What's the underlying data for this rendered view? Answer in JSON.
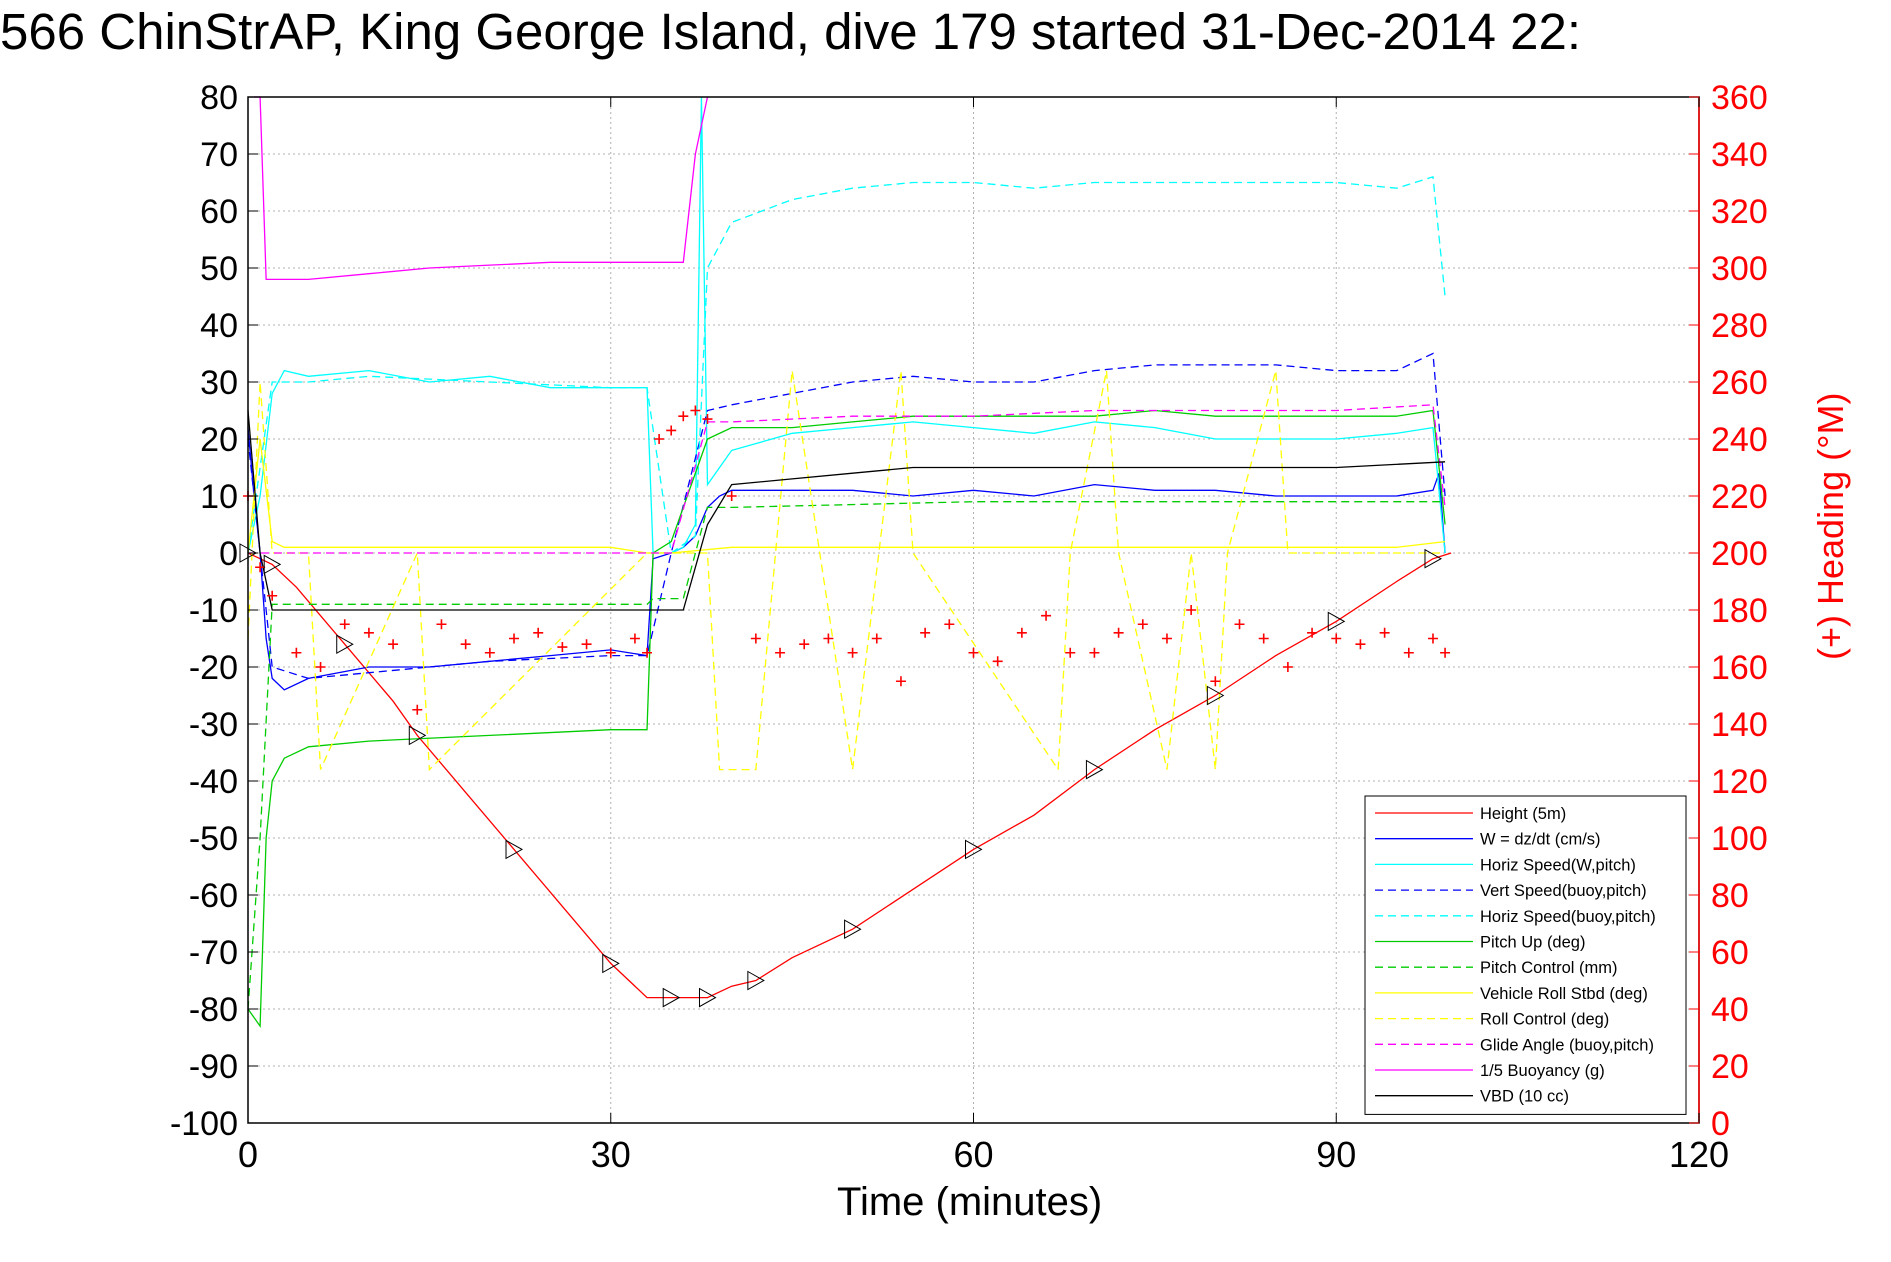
{
  "chart_data": {
    "type": "line",
    "title": "566 ChinStrAP, King George Island, dive 179 started 31-Dec-2014 22:",
    "xlabel": "Time (minutes)",
    "ylabel": "",
    "ylabel_right": "(+) Heading (°M)",
    "xlim": [
      0,
      120
    ],
    "ylim": [
      -100,
      80
    ],
    "ylim_right": [
      0,
      360
    ],
    "x_ticks": [
      "0",
      "30",
      "60",
      "90",
      "120"
    ],
    "y_ticks": [
      "80",
      "70",
      "60",
      "50",
      "40",
      "30",
      "20",
      "10",
      "0",
      "-10",
      "-20",
      "-30",
      "-40",
      "-50",
      "-60",
      "-70",
      "-80",
      "-90",
      "-100"
    ],
    "y_right_ticks": [
      "360",
      "340",
      "320",
      "300",
      "280",
      "260",
      "240",
      "220",
      "200",
      "180",
      "160",
      "140",
      "120",
      "100",
      "80",
      "60",
      "40",
      "20",
      "0"
    ],
    "grid": true,
    "legend_position": "bottom-right",
    "series": [
      {
        "name": "Height (5m)",
        "color": "#ff0000",
        "style": "solid",
        "x": [
          0,
          1,
          2,
          4,
          8,
          12,
          14,
          18,
          22,
          26,
          30,
          33,
          35,
          36,
          38,
          40,
          42,
          45,
          50,
          55,
          60,
          65,
          70,
          75,
          80,
          85,
          90,
          95,
          98,
          99.5
        ],
        "y": [
          0,
          -1,
          -2,
          -6,
          -16,
          -26,
          -32,
          -42,
          -52,
          -62,
          -72,
          -78,
          -78,
          -78,
          -78,
          -76,
          -75,
          -71,
          -66,
          -59,
          -52,
          -46,
          -38,
          -31,
          -25,
          -18,
          -12,
          -5,
          -1,
          0
        ]
      },
      {
        "name": "W = dz/dt (cm/s)",
        "color": "#0000ff",
        "style": "solid",
        "x": [
          0,
          0.5,
          1,
          1.5,
          2,
          3,
          5,
          10,
          15,
          20,
          25,
          30,
          33,
          33.5,
          35,
          36,
          37,
          38,
          39,
          40,
          45,
          50,
          55,
          60,
          65,
          70,
          75,
          80,
          85,
          90,
          95,
          98,
          98.5,
          99
        ],
        "y": [
          22,
          10,
          0,
          -15,
          -22,
          -24,
          -22,
          -20,
          -20,
          -19,
          -18,
          -17,
          -18,
          -1,
          0,
          1,
          3,
          8,
          10,
          11,
          11,
          11,
          10,
          11,
          10,
          12,
          11,
          11,
          10,
          10,
          10,
          11,
          14,
          0
        ]
      },
      {
        "name": "Horiz Speed(W,pitch)",
        "color": "#00ffff",
        "style": "solid",
        "x": [
          0,
          1,
          2,
          3,
          5,
          10,
          15,
          20,
          25,
          30,
          33,
          33.5,
          35,
          36,
          37,
          37.5,
          38,
          39,
          40,
          45,
          50,
          55,
          60,
          65,
          70,
          75,
          80,
          85,
          90,
          95,
          98,
          99
        ],
        "y": [
          0,
          10,
          28,
          32,
          31,
          32,
          30,
          31,
          29,
          29,
          29,
          0,
          0,
          1,
          5,
          80,
          12,
          15,
          18,
          21,
          22,
          23,
          22,
          21,
          23,
          22,
          20,
          20,
          20,
          21,
          22,
          0
        ]
      },
      {
        "name": "Vert Speed(buoy,pitch)",
        "color": "#0000ff",
        "style": "dashed",
        "x": [
          0,
          1,
          2,
          5,
          10,
          20,
          30,
          33,
          35,
          38,
          40,
          45,
          50,
          55,
          60,
          65,
          70,
          75,
          80,
          85,
          90,
          95,
          98,
          99
        ],
        "y": [
          20,
          0,
          -20,
          -22,
          -21,
          -19,
          -18,
          -18,
          0,
          25,
          26,
          28,
          30,
          31,
          30,
          30,
          32,
          33,
          33,
          33,
          32,
          32,
          35,
          10
        ]
      },
      {
        "name": "Horiz Speed(buoy,pitch)",
        "color": "#00ffff",
        "style": "dashed",
        "x": [
          0,
          1,
          2,
          5,
          10,
          20,
          30,
          33,
          35,
          37,
          38,
          40,
          45,
          50,
          55,
          60,
          65,
          70,
          75,
          80,
          85,
          90,
          95,
          98,
          99
        ],
        "y": [
          0,
          15,
          30,
          30,
          31,
          30,
          29,
          29,
          0,
          3,
          50,
          58,
          62,
          64,
          65,
          65,
          64,
          65,
          65,
          65,
          65,
          65,
          64,
          66,
          45
        ]
      },
      {
        "name": "Pitch Up (deg)",
        "color": "#00cc00",
        "style": "solid",
        "x": [
          0,
          1,
          1.5,
          2,
          3,
          5,
          10,
          20,
          30,
          33,
          33.5,
          35,
          38,
          40,
          45,
          50,
          55,
          60,
          65,
          70,
          75,
          80,
          85,
          90,
          95,
          98,
          99
        ],
        "y": [
          -80,
          -83,
          -50,
          -40,
          -36,
          -34,
          -33,
          -32,
          -31,
          -31,
          0,
          2,
          20,
          22,
          22,
          23,
          24,
          24,
          24,
          24,
          25,
          24,
          24,
          24,
          24,
          25,
          5
        ]
      },
      {
        "name": "Pitch Control (mm)",
        "color": "#00cc00",
        "style": "dashed",
        "x": [
          0,
          1,
          2,
          33,
          33.5,
          36,
          38,
          40,
          60,
          80,
          99
        ],
        "y": [
          -80,
          -50,
          -9,
          -9,
          -8,
          -8,
          8,
          8,
          9,
          9,
          9
        ]
      },
      {
        "name": "Vehicle Roll Stbd (deg)",
        "color": "#ffff00",
        "style": "solid",
        "x": [
          0,
          1,
          2,
          3,
          10,
          20,
          30,
          33,
          35,
          40,
          45,
          50,
          60,
          70,
          80,
          90,
          95,
          99
        ],
        "y": [
          0,
          20,
          2,
          1,
          1,
          1,
          1,
          0,
          0,
          1,
          1,
          1,
          1,
          1,
          1,
          1,
          1,
          2
        ]
      },
      {
        "name": "Roll Control (deg)",
        "color": "#ffff00",
        "style": "dashed",
        "x": [
          0,
          1,
          2,
          5,
          6,
          14,
          15,
          33,
          38,
          39,
          42,
          45,
          50,
          54,
          55,
          67,
          68,
          71,
          72,
          76,
          78,
          80,
          81,
          85,
          86,
          99
        ],
        "y": [
          -15,
          30,
          0,
          0,
          -38,
          0,
          -38,
          0,
          0,
          -38,
          -38,
          32,
          -38,
          32,
          0,
          -38,
          0,
          32,
          0,
          -38,
          0,
          -38,
          0,
          32,
          0,
          0
        ]
      },
      {
        "name": "Glide Angle (buoy,pitch)",
        "color": "#ff00ff",
        "style": "dashed",
        "x": [
          0,
          33,
          35,
          38,
          40,
          50,
          60,
          70,
          80,
          90,
          98,
          99
        ],
        "y": [
          0,
          0,
          0,
          23,
          23,
          24,
          24,
          25,
          25,
          25,
          26,
          8
        ]
      },
      {
        "name": "1/5 Buoyancy (g)",
        "color": "#ff00ff",
        "style": "solid",
        "x": [
          0.5,
          1,
          1.5,
          5,
          10,
          15,
          20,
          25,
          30,
          36,
          37,
          38
        ],
        "y": [
          80,
          80,
          48,
          48,
          49,
          50,
          50.5,
          51,
          51,
          51,
          70,
          80
        ]
      },
      {
        "name": "VBD (10 cc)",
        "color": "#000000",
        "style": "solid",
        "x": [
          0,
          1,
          2,
          10,
          20,
          30,
          35,
          36,
          38,
          40,
          45,
          50,
          55,
          60,
          70,
          80,
          90,
          99
        ],
        "y": [
          25,
          0,
          -10,
          -10,
          -10,
          -10,
          -10,
          -10,
          5,
          12,
          13,
          14,
          15,
          15,
          15,
          15,
          15,
          16
        ]
      },
      {
        "name": "(+) Heading",
        "color": "#ff0000",
        "style": "markers-plus",
        "axis": "right",
        "x": [
          0,
          1,
          2,
          4,
          6,
          8,
          10,
          12,
          14,
          16,
          18,
          20,
          22,
          24,
          26,
          28,
          30,
          32,
          33,
          34,
          35,
          36,
          37,
          38,
          40,
          42,
          44,
          46,
          48,
          50,
          52,
          54,
          56,
          58,
          60,
          62,
          64,
          66,
          68,
          70,
          72,
          74,
          76,
          78,
          80,
          82,
          84,
          86,
          88,
          90,
          92,
          94,
          96,
          98,
          99
        ],
        "y": [
          220,
          195,
          185,
          165,
          160,
          175,
          172,
          168,
          145,
          175,
          168,
          165,
          170,
          172,
          167,
          168,
          165,
          170,
          165,
          240,
          243,
          248,
          250,
          247,
          220,
          170,
          165,
          168,
          170,
          165,
          170,
          155,
          172,
          175,
          165,
          162,
          172,
          178,
          165,
          165,
          172,
          175,
          170,
          180,
          155,
          175,
          170,
          160,
          172,
          170,
          168,
          172,
          165,
          170,
          165
        ]
      }
    ]
  }
}
